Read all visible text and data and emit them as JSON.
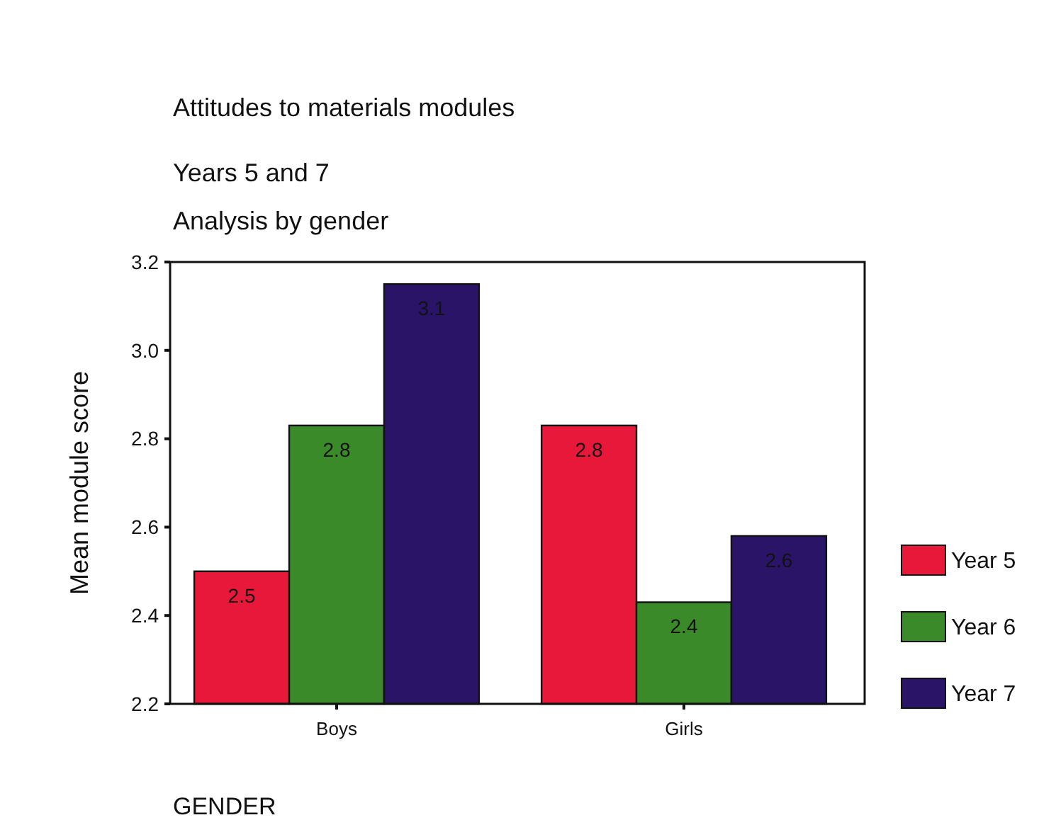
{
  "chart_data": {
    "type": "bar",
    "title": "Attitudes to materials modules",
    "subtitle": "Years 5 and 7",
    "annotations": [
      "Analysis by gender"
    ],
    "xlabel": "GENDER",
    "ylabel": "Mean module score",
    "categories": [
      "Boys",
      "Girls"
    ],
    "series": [
      {
        "name": "Year 5",
        "color": "#e8183a",
        "values": [
          2.5,
          2.83
        ],
        "value_labels": [
          "2.5",
          "2.8"
        ]
      },
      {
        "name": "Year 6",
        "color": "#3a8a2a",
        "values": [
          2.83,
          2.43
        ],
        "value_labels": [
          "2.8",
          "2.4"
        ]
      },
      {
        "name": "Year 7",
        "color": "#2a1468",
        "values": [
          3.15,
          2.58
        ],
        "value_labels": [
          "3.1",
          "2.6"
        ]
      }
    ],
    "ylim": [
      2.2,
      3.2
    ],
    "yticks": [
      {
        "value": 2.2,
        "label": "2.2"
      },
      {
        "value": 2.4,
        "label": "2.4"
      },
      {
        "value": 2.6,
        "label": "2.6"
      },
      {
        "value": 2.8,
        "label": "2.8"
      },
      {
        "value": 3.0,
        "label": "3.0"
      },
      {
        "value": 3.2,
        "label": "3.2"
      }
    ],
    "grid": false,
    "legend": "right"
  }
}
